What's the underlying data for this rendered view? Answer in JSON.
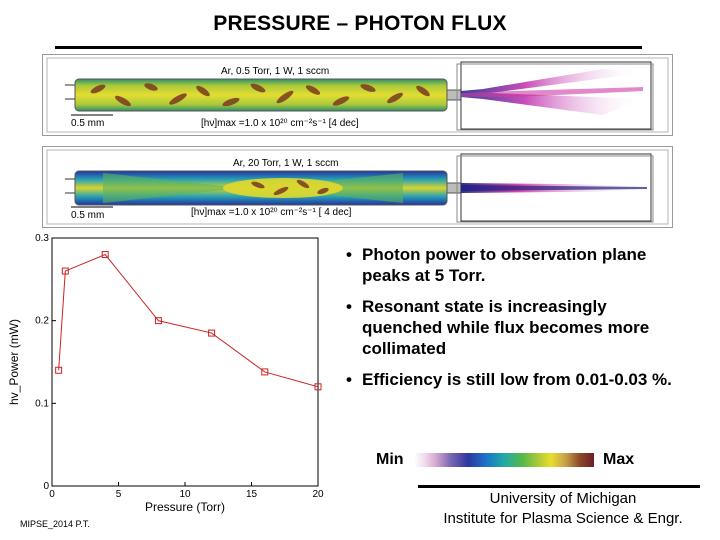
{
  "title": "PRESSURE – PHOTON FLUX",
  "panels": [
    {
      "condition": "Ar, 0.5 Torr, 1 W, 1 sccm",
      "scale_bar": "0.5 mm",
      "flux_max": "[hν]max =1.0 x 10²⁰ cm⁻²s⁻¹ [4 dec]"
    },
    {
      "condition": "Ar, 20 Torr, 1 W, 1 sccm",
      "scale_bar": "0.5 mm",
      "flux_max": "[hν]max =1.0 x 10²⁰ cm⁻²s⁻¹ [ 4 dec]"
    }
  ],
  "bullets": [
    "Photon power to observation plane peaks at 5 Torr.",
    "Resonant state is increasingly quenched while flux becomes more collimated",
    "Efficiency is still low from 0.01-0.03 %."
  ],
  "bullet_symbol": "•",
  "colorscale": {
    "min": "Min",
    "max": "Max"
  },
  "affiliation": {
    "line1": "University of Michigan",
    "line2": "Institute for Plasma Science & Engr."
  },
  "footer": "MIPSE_2014 P.T.",
  "chart_data": {
    "type": "line",
    "xlabel": "Pressure (Torr)",
    "ylabel": "hv_Power (mW)",
    "xlim": [
      0,
      20
    ],
    "ylim": [
      0,
      0.3
    ],
    "xticks": [
      0,
      5,
      10,
      15,
      20
    ],
    "yticks": [
      0,
      0.1,
      0.2,
      0.3
    ],
    "ytick_labels": [
      "0",
      "0.1",
      "0.2",
      "0.3"
    ],
    "grid": false,
    "color": "#cc2222",
    "marker": "square",
    "x": [
      0.5,
      1,
      4,
      8,
      12,
      16,
      20
    ],
    "y": [
      0.14,
      0.26,
      0.28,
      0.2,
      0.185,
      0.138,
      0.12
    ]
  }
}
